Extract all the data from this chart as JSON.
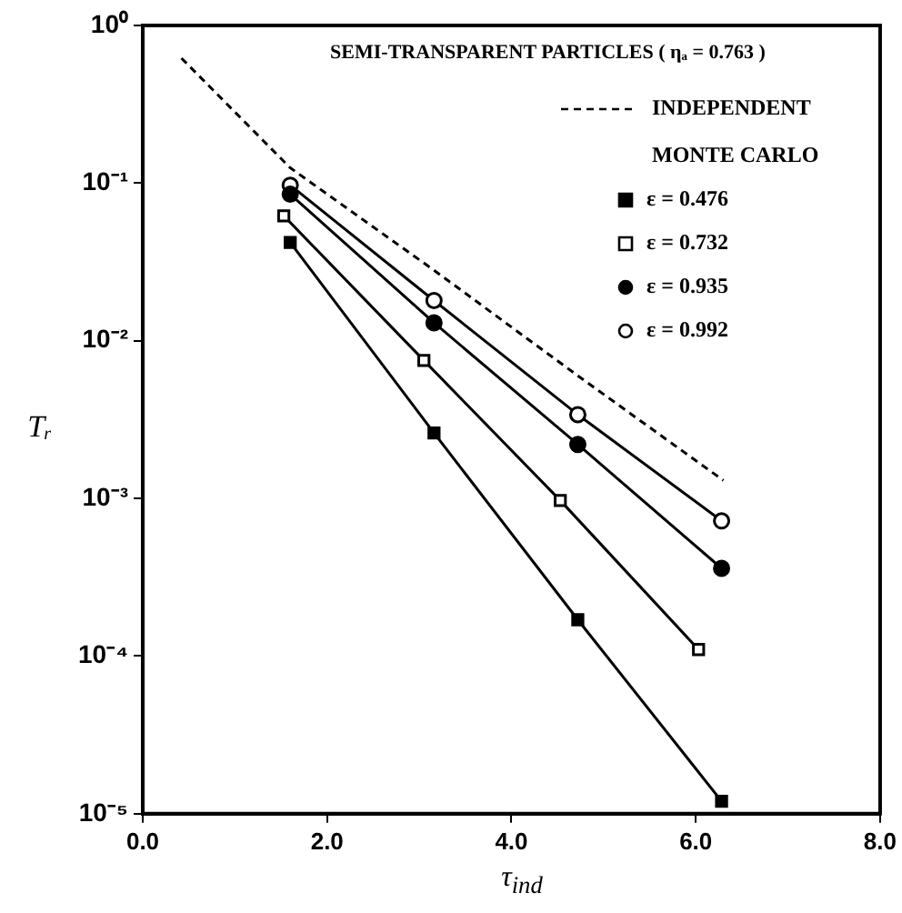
{
  "chart_data": {
    "type": "line",
    "title": "SEMI-TRANSPARENT PARTICLES ( ηₐ = 0.763 )",
    "xlabel": "τ$_{ind}$",
    "ylabel": "Tᵣ",
    "legend_title": "MONTE CARLO",
    "log": "y",
    "legend": "top right",
    "grid": false,
    "xlim": [
      0,
      8
    ],
    "xticks": [
      {
        "value": 0,
        "label": "0.0"
      },
      {
        "value": 2,
        "label": "2.0"
      },
      {
        "value": 4,
        "label": "4.0"
      },
      {
        "value": 6,
        "label": "6.0"
      },
      {
        "value": 8,
        "label": "8.0"
      }
    ],
    "ylim": [
      1e-05,
      1
    ],
    "yticks": [
      {
        "value": 1e-05,
        "label": "10⁻⁵"
      },
      {
        "value": 0.0001,
        "label": "10⁻⁴"
      },
      {
        "value": 0.001,
        "label": "10⁻³"
      },
      {
        "value": 0.01,
        "label": "10⁻²"
      },
      {
        "value": 0.1,
        "label": "10⁻¹"
      },
      {
        "value": 1,
        "label": "10⁰"
      }
    ],
    "series": [
      {
        "name": "INDEPENDENT",
        "color": "#000000",
        "marker": "none",
        "line_style": "dashed",
        "x": [
          0.42,
          1.6,
          3.16,
          4.72,
          6.3
        ],
        "values": [
          0.62,
          0.125,
          0.028,
          0.006,
          0.0013
        ]
      },
      {
        "name": "ε = 0.476",
        "color": "#000000",
        "marker": "square",
        "line_style": "solid",
        "x": [
          1.6,
          3.16,
          4.72,
          6.28
        ],
        "values": [
          0.042,
          0.0026,
          0.00017,
          1.2e-05
        ]
      },
      {
        "name": "ε = 0.732",
        "color": "#000000",
        "marker": "square-open",
        "line_style": "solid",
        "x": [
          1.53,
          3.05,
          4.53,
          6.03
        ],
        "values": [
          0.062,
          0.0075,
          0.00097,
          0.00011
        ]
      },
      {
        "name": "ε = 0.935",
        "color": "#000000",
        "marker": "circle",
        "line_style": "solid",
        "x": [
          1.6,
          3.16,
          4.72,
          6.28
        ],
        "values": [
          0.085,
          0.013,
          0.0022,
          0.00036
        ]
      },
      {
        "name": "ε = 0.992",
        "color": "#000000",
        "marker": "circle-open",
        "line_style": "solid",
        "x": [
          1.6,
          3.16,
          4.72,
          6.28
        ],
        "values": [
          0.097,
          0.018,
          0.0034,
          0.00072
        ]
      }
    ]
  }
}
